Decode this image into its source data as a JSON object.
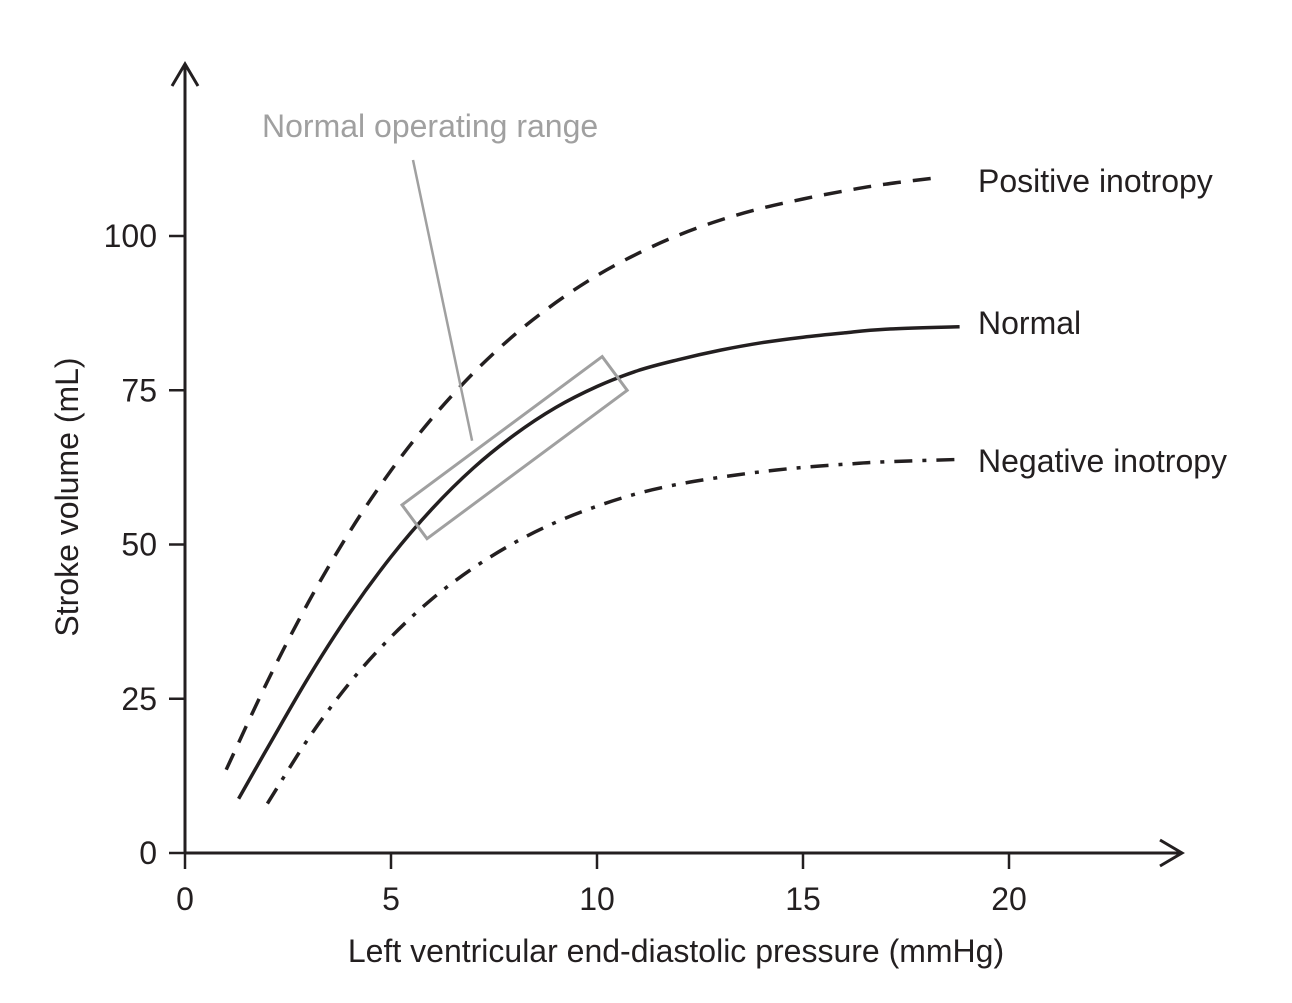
{
  "chart_data": {
    "type": "line",
    "xlabel": "Left ventricular end-diastolic pressure (mmHg)",
    "ylabel": "Stroke volume (mL)",
    "xlim": [
      0,
      24
    ],
    "ylim": [
      0,
      120
    ],
    "xticks": [
      0,
      5,
      10,
      15,
      20
    ],
    "yticks": [
      0,
      25,
      50,
      75,
      100
    ],
    "grid": false,
    "legend": "labels at right end of curves",
    "series": [
      {
        "name": "Positive inotropy",
        "style": "dashed",
        "color": "#231f20",
        "x": [
          1.0,
          2.0,
          3.0,
          4.0,
          5.0,
          6.0,
          7.0,
          8.0,
          9.0,
          10.0,
          11.0,
          12.0,
          13.0,
          14.0,
          15.0,
          16.0,
          17.0,
          18.2
        ],
        "y": [
          13.5,
          27.8,
          40.7,
          52.1,
          62.0,
          70.5,
          77.8,
          84.0,
          89.2,
          93.6,
          97.2,
          100.2,
          102.6,
          104.5,
          106.0,
          107.3,
          108.4,
          109.4
        ]
      },
      {
        "name": "Normal",
        "style": "solid",
        "color": "#231f20",
        "x": [
          1.3,
          2.0,
          3.0,
          4.0,
          5.0,
          6.0,
          7.0,
          8.0,
          9.0,
          10.0,
          11.0,
          12.0,
          13.0,
          14.0,
          15.0,
          16.0,
          17.0,
          18.8
        ],
        "y": [
          8.8,
          17.0,
          28.5,
          38.9,
          48.0,
          55.8,
          62.4,
          67.8,
          72.2,
          75.6,
          78.2,
          80.0,
          81.5,
          82.7,
          83.6,
          84.3,
          84.9,
          85.3
        ]
      },
      {
        "name": "Negative inotropy",
        "style": "dash-dot",
        "color": "#231f20",
        "x": [
          2.0,
          3.0,
          4.0,
          5.0,
          6.0,
          7.0,
          8.0,
          9.0,
          10.0,
          11.0,
          12.0,
          13.0,
          14.0,
          15.0,
          16.0,
          17.0,
          18.8
        ],
        "y": [
          8.0,
          18.6,
          27.6,
          35.0,
          41.2,
          46.2,
          50.3,
          53.6,
          56.2,
          58.3,
          59.8,
          60.9,
          61.8,
          62.5,
          63.0,
          63.4,
          63.8
        ]
      }
    ],
    "annotations": [
      {
        "text": "Normal operating range",
        "color": "#a0a0a0",
        "range_x": [
          6.0,
          10.0
        ]
      }
    ]
  }
}
